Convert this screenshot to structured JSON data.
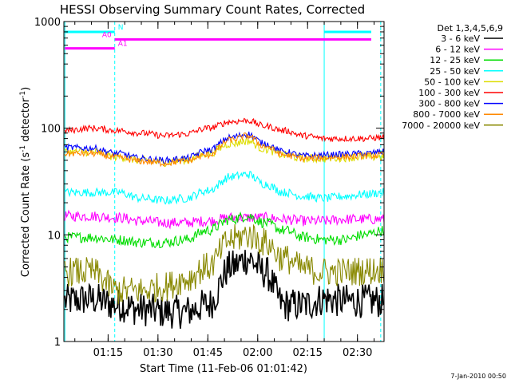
{
  "chart_data": {
    "type": "line",
    "title": "HESSI Observing Summary Count Rates, Corrected",
    "xlabel": "Start Time (11-Feb-06 01:01:42)",
    "ylabel": "Corrected Count Rate (s⁻¹ detector⁻¹)",
    "ylabel_parts": {
      "prefix": "Corrected Count Rate (s",
      "sup1": "-1",
      "middle": " detector",
      "sup2": "-1",
      "suffix": ")"
    },
    "yscale": "log",
    "ylim": [
      1,
      1000
    ],
    "xlim": [
      "01:01:42",
      "02:38:00"
    ],
    "x_ticks": [
      "01:15",
      "01:30",
      "01:45",
      "02:00",
      "02:15",
      "02:30"
    ],
    "y_ticks": [
      "1",
      "10",
      "100",
      "1000"
    ],
    "grid": false,
    "legend_title": "Det 1,3,4,5,6,9",
    "legend_position": "right",
    "footer": "7-Jan-2010 00:50",
    "x_knots": [
      "01:02",
      "01:10",
      "01:18",
      "01:25",
      "01:32",
      "01:38",
      "01:45",
      "01:52",
      "01:57",
      "02:02",
      "02:08",
      "02:14",
      "02:20",
      "02:26",
      "02:32",
      "02:38"
    ],
    "series": [
      {
        "name": "3 - 6 keV",
        "color": "#000000",
        "values": [
          2.4,
          2.5,
          2.2,
          2.0,
          1.9,
          1.9,
          2.2,
          5.0,
          6.0,
          4.5,
          2.2,
          2.2,
          2.5,
          2.4,
          2.4,
          2.4
        ],
        "noise": 0.16
      },
      {
        "name": "6 - 12 keV",
        "color": "#ff00ff",
        "values": [
          15,
          15,
          14.5,
          13.5,
          13,
          13,
          13.5,
          14.5,
          14.5,
          14.5,
          14,
          13.5,
          13.5,
          14,
          14,
          14
        ],
        "noise": 0.05
      },
      {
        "name": "12 - 25 keV",
        "color": "#00dd00",
        "values": [
          9.5,
          9.5,
          9.0,
          8.5,
          8.5,
          9.0,
          11,
          14,
          15,
          13,
          11,
          9.5,
          9.0,
          9.0,
          10,
          11
        ],
        "noise": 0.05
      },
      {
        "name": "25 - 50 keV",
        "color": "#00ffff",
        "values": [
          25,
          25,
          25,
          22,
          21,
          22,
          26,
          35,
          37,
          30,
          25,
          23,
          22,
          23,
          24,
          25
        ],
        "noise": 0.04
      },
      {
        "name": "50 - 100 keV",
        "color": "#dddd00",
        "values": [
          60,
          60,
          54,
          50,
          48,
          50,
          58,
          72,
          76,
          64,
          56,
          52,
          52,
          53,
          54,
          54
        ],
        "noise": 0.04
      },
      {
        "name": "100 - 300 keV",
        "color": "#ff0000",
        "values": [
          95,
          100,
          95,
          90,
          85,
          88,
          100,
          115,
          118,
          105,
          95,
          85,
          80,
          80,
          80,
          82
        ],
        "noise": 0.03
      },
      {
        "name": "300 - 800 keV",
        "color": "#0000ff",
        "values": [
          66,
          65,
          58,
          52,
          50,
          52,
          62,
          82,
          88,
          72,
          60,
          55,
          56,
          57,
          58,
          60
        ],
        "noise": 0.03
      },
      {
        "name": "800 - 7000 keV",
        "color": "#ff8800",
        "values": [
          58,
          58,
          53,
          49,
          47,
          49,
          56,
          78,
          85,
          68,
          56,
          52,
          53,
          54,
          55,
          56
        ],
        "noise": 0.03
      },
      {
        "name": "7000 - 20000 keV",
        "color": "#888800",
        "values": [
          4.5,
          4.5,
          3.0,
          3.0,
          3.3,
          3.8,
          5.0,
          9.0,
          10,
          8.5,
          6.0,
          4.8,
          4.5,
          4.5,
          4.6,
          4.7
        ],
        "noise": 0.14
      }
    ],
    "flags": [
      {
        "name": "N",
        "color": "#00ffff",
        "segments": [
          [
            "01:02",
            "01:17"
          ],
          [
            "02:20",
            "02:38"
          ]
        ],
        "level": 800
      },
      {
        "name": "A0",
        "color": "#ff00ff",
        "segments": [
          [
            "01:17",
            "02:38"
          ]
        ],
        "level": 680
      },
      {
        "name": "A1",
        "color": "#ff00ff",
        "segments": [
          [
            "01:02",
            "01:17"
          ]
        ],
        "level": 560
      }
    ],
    "markers": [
      {
        "time": "01:02",
        "color": "#00ffff",
        "style": "solid"
      },
      {
        "time": "01:17",
        "color": "#00ffff",
        "style": "dashed"
      },
      {
        "time": "02:20",
        "color": "#00ffff",
        "style": "solid"
      },
      {
        "time": "02:37",
        "color": "#00ffff",
        "style": "dashed"
      }
    ]
  }
}
